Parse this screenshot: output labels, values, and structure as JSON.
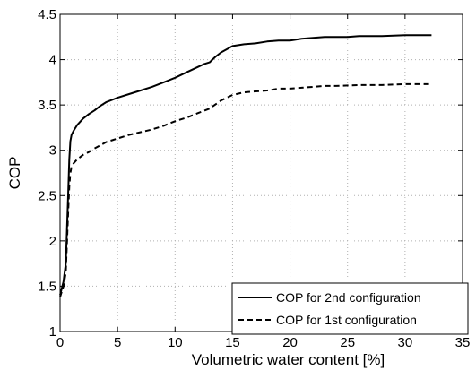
{
  "chart_data": {
    "type": "line",
    "title": "",
    "xlabel": "Volumetric water content [%]",
    "ylabel": "COP",
    "xlim": [
      0,
      35
    ],
    "ylim": [
      1,
      4.5
    ],
    "xticks": [
      0,
      5,
      10,
      15,
      20,
      25,
      30,
      35
    ],
    "yticks": [
      1,
      1.5,
      2,
      2.5,
      3,
      3.5,
      4,
      4.5
    ],
    "xtick_labels": [
      "0",
      "5",
      "10",
      "15",
      "20",
      "25",
      "30",
      "35"
    ],
    "ytick_labels": [
      "1",
      "1.5",
      "2",
      "2.5",
      "3",
      "3.5",
      "4",
      "4.5"
    ],
    "grid": true,
    "legend_position": "bottom-right",
    "series": [
      {
        "name": "COP for 2nd configuration",
        "style": "solid",
        "color": "#000000",
        "x": [
          0,
          0.3,
          0.5,
          0.7,
          0.8,
          0.9,
          1.0,
          1.2,
          1.5,
          2.0,
          2.5,
          3.0,
          3.5,
          4.0,
          5.0,
          6.0,
          7.0,
          8.0,
          9.0,
          10.0,
          11.0,
          12.0,
          12.5,
          13.0,
          13.5,
          14.0,
          15.0,
          16.0,
          17.0,
          18.0,
          19.0,
          20.0,
          21.0,
          22.0,
          23.0,
          24.0,
          25.0,
          26.0,
          28.0,
          30.0,
          32.3
        ],
        "y": [
          1.4,
          1.55,
          1.75,
          2.5,
          2.9,
          3.1,
          3.17,
          3.22,
          3.28,
          3.35,
          3.4,
          3.44,
          3.49,
          3.53,
          3.58,
          3.62,
          3.66,
          3.7,
          3.75,
          3.8,
          3.86,
          3.92,
          3.95,
          3.97,
          4.03,
          4.08,
          4.15,
          4.17,
          4.18,
          4.2,
          4.21,
          4.21,
          4.23,
          4.24,
          4.25,
          4.25,
          4.25,
          4.26,
          4.26,
          4.27,
          4.27
        ]
      },
      {
        "name": "COP for 1st configuration",
        "style": "dashed",
        "color": "#000000",
        "x": [
          0,
          0.3,
          0.5,
          0.7,
          0.8,
          0.9,
          1.0,
          1.2,
          1.5,
          2.0,
          2.5,
          3.0,
          4.0,
          5.0,
          6.0,
          7.0,
          8.0,
          9.0,
          10.0,
          11.0,
          12.0,
          13.0,
          14.0,
          15.0,
          16.0,
          17.0,
          18.0,
          19.0,
          20.0,
          21.0,
          22.0,
          23.0,
          24.0,
          26.0,
          28.0,
          30.0,
          32.3
        ],
        "y": [
          1.38,
          1.5,
          1.65,
          2.3,
          2.6,
          2.75,
          2.82,
          2.86,
          2.9,
          2.95,
          2.98,
          3.02,
          3.09,
          3.13,
          3.17,
          3.2,
          3.23,
          3.27,
          3.32,
          3.36,
          3.41,
          3.46,
          3.55,
          3.61,
          3.64,
          3.65,
          3.66,
          3.68,
          3.68,
          3.69,
          3.7,
          3.71,
          3.71,
          3.72,
          3.72,
          3.73,
          3.73
        ]
      }
    ]
  }
}
